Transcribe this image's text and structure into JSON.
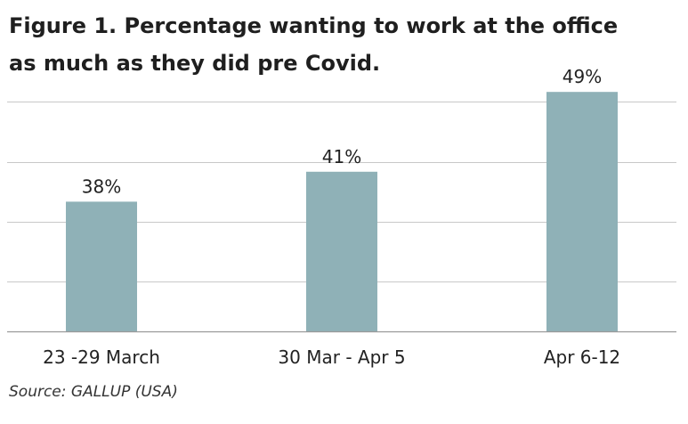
{
  "title_line1": "Figure 1. Percentage wanting to work at the office",
  "title_line2": "as much as they did pre Covid.",
  "source": "Source: GALLUP (USA)",
  "colors": {
    "bar": "#8fb1b7",
    "grid": "#c8c8c8",
    "axis": "#9a9a9a",
    "text": "#222222"
  },
  "chart_data": {
    "type": "bar",
    "title": "Figure 1. Percentage wanting to work at the office as much as they did pre Covid.",
    "categories": [
      "23 -29 March",
      "30 Mar - Apr 5",
      "Apr 6-12"
    ],
    "values": [
      38,
      41,
      49
    ],
    "data_labels": [
      "38%",
      "41%",
      "49%"
    ],
    "ylim": [
      25,
      49.5
    ],
    "grid": true,
    "gridlines": [
      30,
      36,
      42,
      48
    ],
    "y_tick_labels_shown": false,
    "unit": "%"
  }
}
